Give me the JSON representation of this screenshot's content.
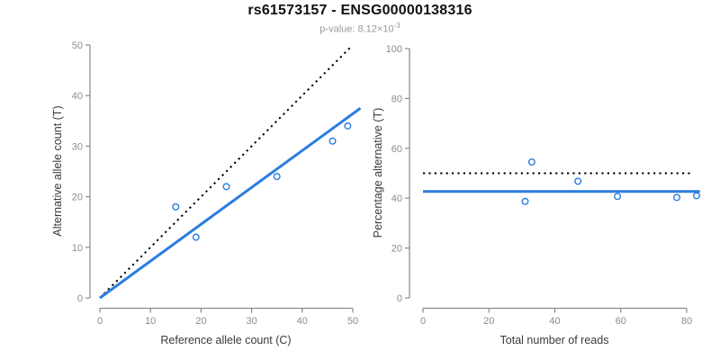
{
  "header": {
    "title": "rs61573157 - ENSG00000138316",
    "p_value_prefix": "p-value: 8.12×10",
    "p_value_exponent": "-3"
  },
  "colors": {
    "accent_blue": "#2b7ce0",
    "reference_line_black": "#000000",
    "axis_gray": "#8a8a8a",
    "tick_label_gray": "#8c8c8c",
    "axis_title_dark": "#3a3a3a",
    "title_black": "#111111",
    "subtitle_gray": "#9b9b9b"
  },
  "chart_data": [
    {
      "type": "scatter",
      "panel": "allele-counts",
      "xlabel": "Reference allele count (C)",
      "ylabel": "Alternative allele count (T)",
      "xlim": [
        -2,
        52
      ],
      "ylim": [
        -2,
        52
      ],
      "xticks": [
        0,
        10,
        20,
        30,
        40,
        50
      ],
      "yticks": [
        0,
        10,
        20,
        30,
        40,
        50
      ],
      "grid": false,
      "points": [
        [
          15,
          18
        ],
        [
          19,
          12
        ],
        [
          25,
          22
        ],
        [
          35,
          24
        ],
        [
          46,
          31
        ],
        [
          49,
          34
        ]
      ],
      "lines": [
        {
          "name": "identity-line",
          "style": "dotted",
          "color": "#000000",
          "from": [
            0,
            0
          ],
          "to": [
            49.5,
            49.5
          ]
        },
        {
          "name": "fitted-ratio-line",
          "style": "solid",
          "color": "#2b7ce0",
          "from": [
            0,
            0
          ],
          "to": [
            51.5,
            37.5
          ]
        }
      ]
    },
    {
      "type": "scatter",
      "panel": "percentage-vs-coverage",
      "xlabel": "Total number of reads",
      "ylabel": "Percentage alternative (T)",
      "xlim": [
        -3.5,
        84.5
      ],
      "ylim": [
        -4,
        104
      ],
      "xticks": [
        0,
        20,
        40,
        60,
        80
      ],
      "yticks": [
        0,
        20,
        40,
        60,
        80,
        100
      ],
      "grid": false,
      "points": [
        [
          33,
          54.5
        ],
        [
          31,
          38.7
        ],
        [
          47,
          46.8
        ],
        [
          59,
          40.7
        ],
        [
          77,
          40.3
        ],
        [
          83,
          41.0
        ]
      ],
      "lines": [
        {
          "name": "expected-50pct-line",
          "style": "dotted",
          "color": "#000000",
          "from": [
            0,
            50
          ],
          "to": [
            81.5,
            50
          ]
        },
        {
          "name": "observed-mean-pct-line",
          "style": "solid",
          "color": "#2b7ce0",
          "from": [
            0,
            42.7
          ],
          "to": [
            84,
            42.7
          ]
        }
      ]
    }
  ]
}
